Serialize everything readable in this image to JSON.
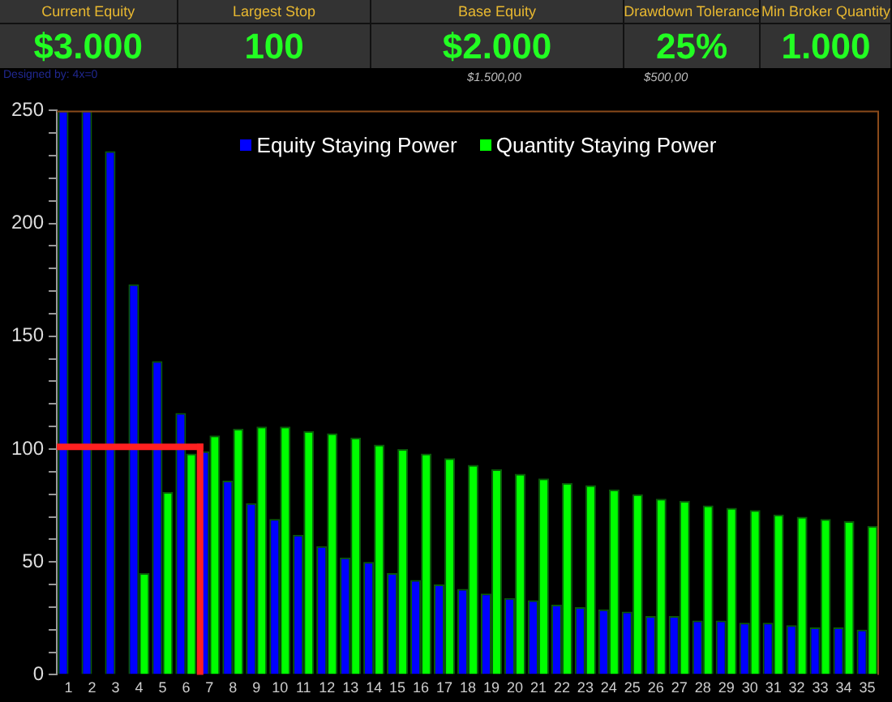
{
  "chart_data": [
    {
      "type": "other",
      "categories": [
        "Current Equity",
        "Largest Stop",
        "Base Equity",
        "Drawdown Tolerance",
        "Min Broker Quantity"
      ],
      "value_labels": [
        "$3.000",
        "100",
        "$2.000",
        "25%",
        "1.000"
      ],
      "annotations": [
        "Designed by: 4x=0",
        "$1.500,00",
        "$500,00"
      ]
    },
    {
      "type": "bar",
      "x": [
        1,
        2,
        3,
        4,
        5,
        6,
        7,
        8,
        9,
        10,
        11,
        12,
        13,
        14,
        15,
        16,
        17,
        18,
        19,
        20,
        21,
        22,
        23,
        24,
        25,
        26,
        27,
        28,
        29,
        30,
        31,
        32,
        33,
        34,
        35
      ],
      "xlim": [
        0.5,
        35.5
      ],
      "xticks": [
        1,
        2,
        3,
        4,
        5,
        6,
        7,
        8,
        9,
        10,
        11,
        12,
        13,
        14,
        15,
        16,
        17,
        18,
        19,
        20,
        21,
        22,
        23,
        24,
        25,
        26,
        27,
        28,
        29,
        30,
        31,
        32,
        33,
        34,
        35
      ],
      "ylim": [
        0,
        250
      ],
      "yticks": [
        0,
        {
          "value": 10,
          "label": null
        },
        {
          "value": 20,
          "label": null
        },
        {
          "value": 30,
          "label": null
        },
        {
          "value": 40,
          "label": null
        },
        50,
        {
          "value": 60,
          "label": null
        },
        {
          "value": 70,
          "label": null
        },
        {
          "value": 80,
          "label": null
        },
        {
          "value": 90,
          "label": null
        },
        100,
        {
          "value": 110,
          "label": null
        },
        {
          "value": 120,
          "label": null
        },
        {
          "value": 130,
          "label": null
        },
        {
          "value": 140,
          "label": null
        },
        150,
        {
          "value": 160,
          "label": null
        },
        {
          "value": 170,
          "label": null
        },
        {
          "value": 180,
          "label": null
        },
        {
          "value": 190,
          "label": null
        },
        200,
        {
          "value": 210,
          "label": null
        },
        {
          "value": 220,
          "label": null
        },
        {
          "value": 230,
          "label": null
        },
        {
          "value": 240,
          "label": null
        },
        250
      ],
      "grid": false,
      "legend": "top",
      "series": [
        {
          "name": "Equity Staying Power",
          "color": "#0000ff",
          "values": [
            250,
            250,
            232,
            173,
            139,
            116,
            99,
            86,
            76,
            69,
            62,
            57,
            52,
            50,
            45,
            42,
            40,
            38,
            36,
            34,
            33,
            31,
            30,
            29,
            28,
            26,
            26,
            24,
            24,
            23,
            23,
            22,
            21,
            21,
            20
          ]
        },
        {
          "name": "Quantity Staying Power",
          "color": "#00ff00",
          "values": [
            null,
            null,
            null,
            45,
            81,
            98,
            106,
            109,
            110,
            110,
            108,
            107,
            105,
            102,
            100,
            98,
            96,
            93,
            91,
            89,
            87,
            85,
            84,
            82,
            80,
            78,
            77,
            75,
            74,
            73,
            71,
            70,
            69,
            68,
            66
          ]
        }
      ],
      "ref_lines": [
        {
          "axis": "y",
          "value": 101,
          "color": "#ff2020"
        },
        {
          "axis": "x",
          "value": 6.6,
          "color": "#ff2020"
        }
      ]
    }
  ]
}
